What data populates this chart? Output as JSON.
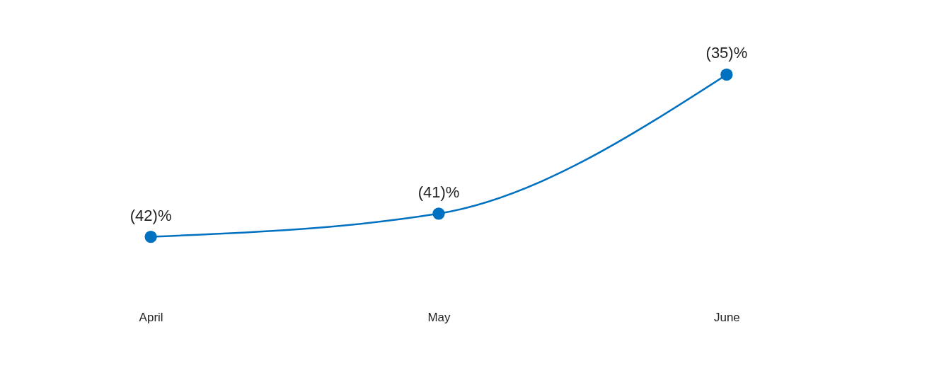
{
  "chart_data": {
    "type": "line",
    "categories": [
      "April",
      "May",
      "June"
    ],
    "series": [
      {
        "color": "#0070c0",
        "values": [
          -42,
          -41,
          -35
        ],
        "value_labels": [
          "(42)%",
          "(41)%",
          "(35)%"
        ]
      }
    ],
    "tick_labels": "x",
    "grid": false,
    "marker": "circle",
    "line_style": "solid"
  }
}
